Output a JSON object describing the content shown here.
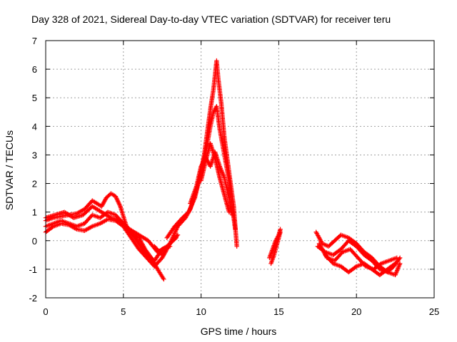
{
  "chart_data": {
    "type": "scatter",
    "title": "Day 328 of 2021, Sidereal Day-to-day VTEC variation (SDTVAR) for receiver teru",
    "xlabel": "GPS time / hours",
    "ylabel": "SDTVAR / TECUs",
    "xlim": [
      0,
      25
    ],
    "ylim": [
      -2,
      7
    ],
    "xticks": [
      0,
      5,
      10,
      15,
      20,
      25
    ],
    "yticks": [
      -2,
      -1,
      0,
      1,
      2,
      3,
      4,
      5,
      6,
      7
    ],
    "xtick_labels": [
      "0",
      "5",
      "10",
      "15",
      "20",
      "25"
    ],
    "ytick_labels": [
      "-2",
      "-1",
      "0",
      "1",
      "2",
      "3",
      "4",
      "5",
      "6",
      "7"
    ],
    "grid": true,
    "marker": "+",
    "series": [
      {
        "name": "SDTVAR",
        "color": "#ff0000",
        "tracks": [
          {
            "x": [
              0.0,
              0.5,
              1.0,
              1.5,
              2.0,
              2.5,
              3.0,
              3.3,
              3.6,
              3.9,
              4.2,
              4.5,
              4.8,
              5.2,
              5.6,
              6.0,
              6.4,
              6.8,
              7.2,
              7.6
            ],
            "y": [
              0.7,
              0.8,
              0.85,
              0.9,
              0.95,
              1.1,
              1.4,
              1.3,
              1.2,
              1.5,
              1.65,
              1.55,
              1.2,
              0.5,
              0.2,
              0.1,
              -0.3,
              -0.6,
              -1.0,
              -1.35
            ]
          },
          {
            "x": [
              0.0,
              0.5,
              1.0,
              1.5,
              2.0,
              2.5,
              3.0,
              3.5,
              4.0,
              4.5,
              5.0,
              5.5,
              6.0,
              6.5,
              7.0,
              7.5,
              8.0
            ],
            "y": [
              0.5,
              0.6,
              0.7,
              0.6,
              0.5,
              0.6,
              0.9,
              0.8,
              1.0,
              0.9,
              0.6,
              0.3,
              -0.1,
              -0.5,
              -0.7,
              -0.3,
              -0.2
            ]
          },
          {
            "x": [
              0.0,
              0.5,
              1.0,
              1.5,
              2.0,
              2.5,
              3.0,
              3.5,
              4.0,
              4.5,
              5.0,
              5.5,
              6.0,
              6.5,
              7.0,
              7.5,
              8.0,
              8.5
            ],
            "y": [
              0.3,
              0.5,
              0.6,
              0.55,
              0.4,
              0.35,
              0.5,
              0.6,
              0.75,
              0.7,
              0.5,
              0.1,
              -0.3,
              -0.6,
              -0.9,
              -0.6,
              -0.1,
              0.2
            ]
          },
          {
            "x": [
              0.0,
              0.6,
              1.2,
              1.8,
              2.4,
              3.0,
              3.6,
              4.2,
              4.8,
              5.4,
              6.0,
              6.6,
              7.2,
              7.8,
              8.4
            ],
            "y": [
              0.8,
              0.9,
              1.0,
              0.8,
              0.9,
              1.2,
              1.0,
              0.8,
              0.7,
              0.4,
              0.2,
              0.0,
              -0.4,
              -0.2,
              0.1
            ]
          },
          {
            "x": [
              7.0,
              7.5,
              8.0,
              8.5,
              9.0,
              9.3,
              9.6,
              9.9,
              10.2,
              10.4,
              10.6,
              10.8,
              10.9,
              11.0,
              11.1,
              11.3,
              11.5,
              11.8,
              12.1,
              12.3
            ],
            "y": [
              -0.2,
              -0.5,
              -0.1,
              0.5,
              0.8,
              1.1,
              1.6,
              2.2,
              3.0,
              3.8,
              4.6,
              5.3,
              5.8,
              6.3,
              5.7,
              4.8,
              3.6,
              2.4,
              1.2,
              -0.2
            ]
          },
          {
            "x": [
              7.8,
              8.3,
              8.8,
              9.2,
              9.6,
              10.0,
              10.3,
              10.6,
              10.8,
              11.0,
              11.2,
              11.5,
              11.8,
              12.0,
              12.2
            ],
            "y": [
              0.1,
              0.5,
              0.8,
              1.0,
              1.5,
              2.4,
              3.1,
              4.0,
              4.5,
              4.7,
              3.9,
              3.0,
              2.1,
              1.2,
              0.4
            ]
          },
          {
            "x": [
              9.3,
              9.7,
              10.0,
              10.3,
              10.6,
              10.9,
              11.2,
              11.5,
              11.8,
              12.0
            ],
            "y": [
              1.3,
              1.9,
              2.6,
              2.9,
              2.6,
              3.1,
              2.6,
              2.2,
              1.5,
              0.9
            ]
          },
          {
            "x": [
              10.0,
              10.3,
              10.6,
              10.9,
              11.2,
              11.5,
              11.8
            ],
            "y": [
              2.1,
              2.8,
              3.4,
              2.9,
              2.2,
              1.6,
              1.0
            ]
          },
          {
            "x": [
              14.4,
              14.6,
              14.8,
              15.0,
              15.1
            ],
            "y": [
              -0.6,
              -0.3,
              0.0,
              0.2,
              0.4
            ]
          },
          {
            "x": [
              14.5,
              14.7,
              14.9,
              15.1
            ],
            "y": [
              -0.8,
              -0.5,
              -0.1,
              0.3
            ]
          },
          {
            "x": [
              17.4,
              17.8,
              18.2,
              18.6,
              19.0,
              19.5,
              20.0,
              20.5,
              21.0,
              21.5,
              22.0,
              22.4,
              22.8
            ],
            "y": [
              0.3,
              -0.1,
              -0.2,
              0.0,
              0.2,
              0.1,
              -0.1,
              -0.4,
              -0.6,
              -0.9,
              -1.1,
              -0.9,
              -0.6
            ]
          },
          {
            "x": [
              17.5,
              18.0,
              18.5,
              19.0,
              19.5,
              20.0,
              20.5,
              21.0,
              21.5,
              22.0,
              22.5,
              22.8
            ],
            "y": [
              -0.2,
              -0.4,
              -0.5,
              -0.3,
              0.0,
              -0.2,
              -0.5,
              -0.7,
              -1.0,
              -1.1,
              -1.2,
              -0.8
            ]
          },
          {
            "x": [
              17.6,
              18.1,
              18.6,
              19.1,
              19.6,
              20.1,
              20.6,
              21.1,
              21.6,
              22.1,
              22.6
            ],
            "y": [
              -0.1,
              -0.6,
              -0.7,
              -0.4,
              -0.3,
              -0.6,
              -0.9,
              -1.0,
              -0.8,
              -0.7,
              -0.6
            ]
          },
          {
            "x": [
              18.0,
              18.5,
              19.0,
              19.5,
              20.0,
              20.5,
              21.0,
              21.5,
              22.0,
              22.5
            ],
            "y": [
              -0.5,
              -0.8,
              -0.9,
              -1.1,
              -0.9,
              -0.8,
              -1.0,
              -1.2,
              -1.0,
              -0.8
            ]
          }
        ]
      }
    ]
  }
}
